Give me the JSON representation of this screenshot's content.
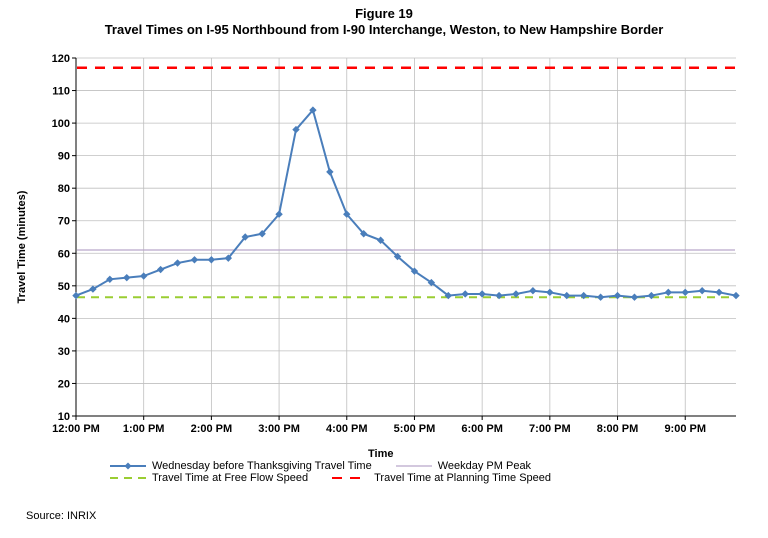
{
  "figure_number": "Figure 19",
  "title": "Travel Times on I-95 Northbound from I-90 Interchange, Weston, to New Hampshire Border",
  "xlabel": "Time",
  "ylabel": "Travel Time (minutes)",
  "source": "Source: INRIX",
  "chart": {
    "type": "line",
    "background_color": "#ffffff",
    "grid_color": "#bfbfbf",
    "axis_color": "#000000",
    "tick_font_size": 11,
    "tick_font_weight": "bold",
    "label_font_size": 11,
    "label_font_weight": "bold",
    "title_font_size": 13,
    "title_font_weight": "bold",
    "ylim": [
      10,
      120
    ],
    "ytick_step": 10,
    "x_major_ticks": [
      {
        "value": 0.0,
        "label": "12:00 PM"
      },
      {
        "value": 1.0,
        "label": "1:00 PM"
      },
      {
        "value": 2.0,
        "label": "2:00 PM"
      },
      {
        "value": 3.0,
        "label": "3:00 PM"
      },
      {
        "value": 4.0,
        "label": "4:00 PM"
      },
      {
        "value": 5.0,
        "label": "5:00 PM"
      },
      {
        "value": 6.0,
        "label": "6:00 PM"
      },
      {
        "value": 7.0,
        "label": "7:00 PM"
      },
      {
        "value": 8.0,
        "label": "8:00 PM"
      },
      {
        "value": 9.0,
        "label": "9:00 PM"
      }
    ],
    "x_min_hours": 0.0,
    "x_max_hours": 9.75,
    "hlines": [
      {
        "name": "planning",
        "value": 117,
        "color": "#ff0000",
        "dash": "10,8",
        "width": 2.5
      },
      {
        "name": "pmpeak",
        "value": 61,
        "color": "#b9a6c9",
        "dash": "",
        "width": 1.2
      },
      {
        "name": "freeflow",
        "value": 46.5,
        "color": "#9acd32",
        "dash": "8,6",
        "width": 2
      }
    ],
    "series": {
      "name": "thanksgiving",
      "color": "#4a7ebb",
      "marker": "diamond",
      "marker_size": 6,
      "line_width": 2,
      "x": [
        0.0,
        0.25,
        0.5,
        0.75,
        1.0,
        1.25,
        1.5,
        1.75,
        2.0,
        2.25,
        2.5,
        2.75,
        3.0,
        3.25,
        3.5,
        3.75,
        4.0,
        4.25,
        4.5,
        4.75,
        5.0,
        5.25,
        5.5,
        5.75,
        6.0,
        6.25,
        6.5,
        6.75,
        7.0,
        7.25,
        7.5,
        7.75,
        8.0,
        8.25,
        8.5,
        8.75,
        9.0,
        9.25,
        9.5,
        9.75
      ],
      "y": [
        47,
        49,
        52,
        52.5,
        53,
        55,
        57,
        58,
        58,
        58.5,
        65,
        66,
        72,
        98,
        104,
        85,
        72,
        66,
        64,
        59,
        54.5,
        51,
        47,
        47.5,
        47.5,
        47,
        47.5,
        48.5,
        48,
        47,
        47,
        46.5,
        47,
        46.5,
        47,
        48,
        48,
        48.5,
        48,
        47
      ]
    }
  },
  "legend": {
    "items": [
      {
        "key": "thanksgiving",
        "label": "Wednesday before Thanksgiving Travel Time",
        "kind": "line-marker",
        "color": "#4a7ebb",
        "dash": "",
        "marker": "diamond"
      },
      {
        "key": "pmpeak",
        "label": "Weekday PM Peak",
        "kind": "line",
        "color": "#b9a6c9",
        "dash": ""
      },
      {
        "key": "freeflow",
        "label": "Travel Time at Free Flow Speed",
        "kind": "line",
        "color": "#9acd32",
        "dash": "8,6"
      },
      {
        "key": "planning",
        "label": "Travel Time at Planning Time Speed",
        "kind": "line",
        "color": "#ff0000",
        "dash": "10,8"
      }
    ]
  }
}
